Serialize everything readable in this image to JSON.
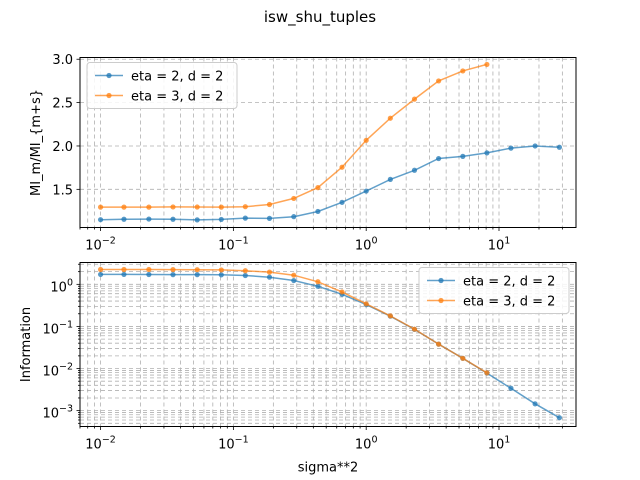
{
  "chart_data": [
    {
      "type": "line",
      "title": "isw_shu_tuples",
      "xlabel": "",
      "ylabel": "MI_m/MI_{m+s}",
      "xscale": "log",
      "yscale": "linear",
      "xlim": [
        0.007,
        38
      ],
      "ylim": [
        1.06,
        3.02
      ],
      "grid": true,
      "legend_position": "top-left",
      "x": [
        0.01,
        0.015,
        0.0231,
        0.0351,
        0.0534,
        0.0811,
        0.123,
        0.187,
        0.285,
        0.433,
        0.658,
        1.0,
        1.52,
        2.31,
        3.51,
        5.34,
        8.11,
        12.3,
        18.7,
        28.5
      ],
      "xticks": [
        {
          "value": 0.01,
          "base": "10",
          "exp": "−2"
        },
        {
          "value": 0.1,
          "base": "10",
          "exp": "−1"
        },
        {
          "value": 1,
          "base": "10",
          "exp": "0"
        },
        {
          "value": 10,
          "base": "10",
          "exp": "1"
        }
      ],
      "yticks": [
        {
          "value": 1.5,
          "label": "1.5"
        },
        {
          "value": 2.0,
          "label": "2.0"
        },
        {
          "value": 2.5,
          "label": "2.5"
        },
        {
          "value": 3.0,
          "label": "3.0"
        }
      ],
      "series": [
        {
          "name": "eta = 2, d = 2",
          "color": "#1f77b4",
          "values": [
            1.15,
            1.155,
            1.157,
            1.155,
            1.148,
            1.153,
            1.168,
            1.165,
            1.185,
            1.245,
            1.35,
            1.48,
            1.615,
            1.72,
            1.855,
            1.88,
            1.92,
            1.975,
            2.0,
            1.985
          ]
        },
        {
          "name": "eta = 3, d = 2",
          "color": "#ff7f0e",
          "values": [
            1.295,
            1.295,
            1.295,
            1.297,
            1.296,
            1.295,
            1.3,
            1.325,
            1.395,
            1.52,
            1.755,
            2.065,
            2.32,
            2.54,
            2.75,
            2.865,
            2.94,
            null,
            null,
            null
          ]
        }
      ]
    },
    {
      "type": "line",
      "xlabel": "sigma**2",
      "ylabel": "Information",
      "xscale": "log",
      "yscale": "log",
      "xlim": [
        0.007,
        38
      ],
      "ylim": [
        0.00042,
        3.3
      ],
      "grid": true,
      "legend_position": "top-right",
      "x": [
        0.01,
        0.015,
        0.0231,
        0.0351,
        0.0534,
        0.0811,
        0.123,
        0.187,
        0.285,
        0.433,
        0.658,
        1.0,
        1.52,
        2.31,
        3.51,
        5.34,
        8.11,
        12.3,
        18.7,
        28.5
      ],
      "xticks": [
        {
          "value": 0.01,
          "base": "10",
          "exp": "−2"
        },
        {
          "value": 0.1,
          "base": "10",
          "exp": "−1"
        },
        {
          "value": 1,
          "base": "10",
          "exp": "0"
        },
        {
          "value": 10,
          "base": "10",
          "exp": "1"
        }
      ],
      "yticks": [
        {
          "value": 0.001,
          "base": "10",
          "exp": "−3"
        },
        {
          "value": 0.01,
          "base": "10",
          "exp": "−2"
        },
        {
          "value": 0.1,
          "base": "10",
          "exp": "−1"
        },
        {
          "value": 1,
          "base": "10",
          "exp": "0"
        }
      ],
      "series": [
        {
          "name": "eta = 2, d = 2",
          "color": "#1f77b4",
          "values": [
            1.72,
            1.72,
            1.71,
            1.7,
            1.7,
            1.68,
            1.62,
            1.48,
            1.23,
            0.9,
            0.58,
            0.33,
            0.175,
            0.085,
            0.038,
            0.0175,
            0.0078,
            0.0034,
            0.00145,
            0.00068
          ]
        },
        {
          "name": "eta = 3, d = 2",
          "color": "#ff7f0e",
          "values": [
            2.25,
            2.25,
            2.25,
            2.24,
            2.23,
            2.2,
            2.1,
            1.95,
            1.65,
            1.15,
            0.66,
            0.345,
            0.178,
            0.086,
            0.038,
            0.0175,
            0.0079,
            null,
            null,
            null
          ]
        }
      ]
    }
  ]
}
